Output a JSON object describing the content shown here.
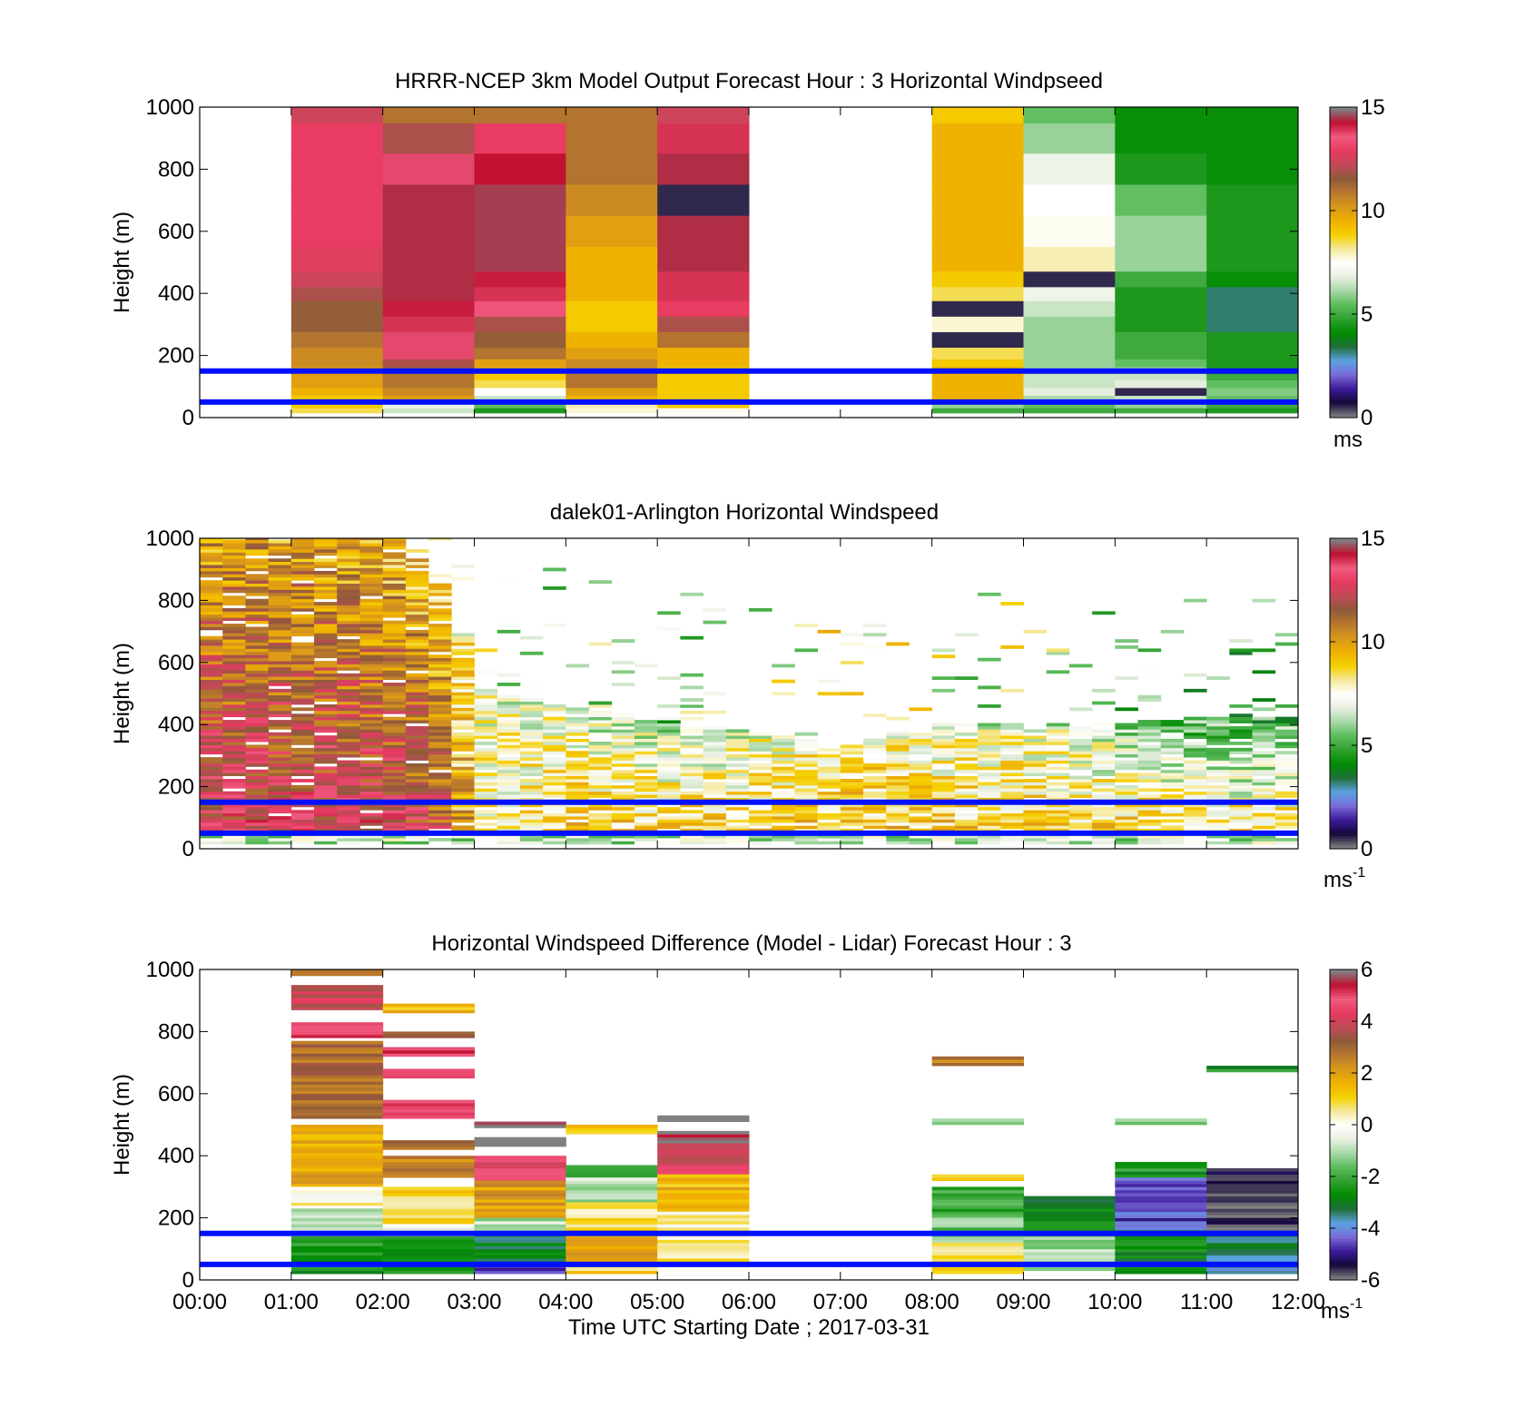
{
  "figure": {
    "xlabel": "Time UTC  Starting Date ; 2017-03-31"
  },
  "colors": {
    "model_lidar_stops": [
      "#808080",
      "#14083a",
      "#3d1a9a",
      "#7b6cd8",
      "#5aa2e0",
      "#1f6f3a",
      "#008c00",
      "#30a030",
      "#5cbc5c",
      "#a8d8a8",
      "#e8f0e0",
      "#ffffff",
      "#f4e89a",
      "#f5d000",
      "#f0b000",
      "#d9971b",
      "#b8782d",
      "#8f5a3a",
      "#c04a58",
      "#e83a60",
      "#f05a80",
      "#c01030",
      "#808080"
    ],
    "diff_stops": [
      "#808080",
      "#14083a",
      "#3d1a9a",
      "#7b6cd8",
      "#5aa2e0",
      "#1f6f3a",
      "#008c00",
      "#30a030",
      "#5cbc5c",
      "#a8d8a8",
      "#e8f0e0",
      "#ffffff",
      "#f4e89a",
      "#f5d000",
      "#f0b000",
      "#d9971b",
      "#b8782d",
      "#8f5a3a",
      "#c04a58",
      "#e83a60",
      "#f05a80",
      "#c01030",
      "#808080"
    ],
    "reference_line": "#0010ff"
  },
  "chart_data": [
    {
      "type": "heatmap",
      "id": "model",
      "title": "HRRR-NCEP 3km Model Output   Forecast Hour : 3 Horizontal Windpseed",
      "ylabel": "Height (m)",
      "ylim": [
        0,
        1000
      ],
      "yticks": [
        0,
        200,
        400,
        600,
        800,
        1000
      ],
      "xlim": [
        0,
        12
      ],
      "xticks_hours": [
        0,
        1,
        2,
        3,
        4,
        5,
        6,
        7,
        8,
        9,
        10,
        11,
        12
      ],
      "colorbar": {
        "range": [
          0,
          15
        ],
        "ticks": [
          0,
          5,
          10,
          15
        ],
        "unit": "ms"
      },
      "reference_lines_m": [
        150,
        50
      ],
      "heights_m": [
        995,
        900,
        800,
        700,
        600,
        500,
        440,
        400,
        350,
        300,
        250,
        200,
        175,
        150,
        130,
        110,
        80,
        60,
        40,
        20
      ],
      "columns": [
        {
          "t_start": 1,
          "t_end": 2,
          "speeds": [
            12.5,
            13,
            13,
            13,
            13,
            12.8,
            12.5,
            12,
            11.5,
            11.5,
            11,
            10.5,
            10.5,
            10,
            10,
            10,
            9.5,
            9,
            9,
            8.5
          ]
        },
        {
          "t_start": 2,
          "t_end": 3,
          "speeds": [
            11,
            12,
            13.8,
            14.5,
            14.5,
            14.5,
            14.5,
            14.5,
            14.2,
            14,
            13.8,
            13.8,
            12,
            11.5,
            11,
            11,
            10.5,
            10,
            7,
            6.5
          ]
        },
        {
          "t_start": 3,
          "t_end": 4,
          "speeds": [
            11,
            13,
            14.3,
            14.6,
            14.6,
            14.6,
            14.2,
            14,
            13.5,
            12,
            11.5,
            11,
            10,
            9.5,
            9,
            8.5,
            7.5,
            6.5,
            5.5,
            4.5
          ]
        },
        {
          "t_start": 4,
          "t_end": 5,
          "speeds": [
            11,
            11,
            11,
            10.5,
            10,
            9.5,
            9.5,
            9.5,
            9,
            9,
            9.5,
            10,
            10.5,
            10.5,
            11,
            11,
            10,
            9.5,
            8,
            7.8
          ]
        },
        {
          "t_start": 5,
          "t_end": 6,
          "speeds": [
            12.5,
            14,
            14.5,
            0.5,
            14.5,
            14.5,
            14,
            14,
            13,
            12,
            11,
            9.5,
            9.5,
            9,
            9,
            9,
            9,
            9,
            9,
            7.6
          ]
        },
        {
          "t_start": 8,
          "t_end": 9,
          "speeds": [
            9,
            9.5,
            9.5,
            9.5,
            9.5,
            9.5,
            9,
            8.5,
            0.5,
            7.8,
            0.5,
            8.5,
            9,
            9.5,
            9.5,
            9.5,
            9.5,
            9.5,
            6,
            5
          ]
        },
        {
          "t_start": 9,
          "t_end": 10,
          "speeds": [
            5.5,
            6,
            7,
            7.5,
            7.6,
            8,
            0.5,
            7,
            6.5,
            6,
            6,
            6,
            6,
            6,
            6.5,
            6.5,
            6.8,
            6.2,
            5.5,
            5
          ]
        },
        {
          "t_start": 10,
          "t_end": 11,
          "speeds": [
            4.2,
            4.2,
            4.5,
            5.5,
            6,
            6,
            5,
            4.5,
            4.5,
            4.5,
            5,
            5,
            5.5,
            6,
            6.5,
            6.8,
            0.5,
            6.5,
            6,
            5
          ]
        },
        {
          "t_start": 11,
          "t_end": 12,
          "speeds": [
            4.2,
            4.2,
            4.2,
            4.5,
            4.5,
            4.5,
            4.2,
            3.2,
            3.2,
            3.2,
            4.5,
            4.5,
            4.5,
            4.5,
            5,
            5.5,
            5.8,
            5.5,
            5,
            4.5
          ]
        }
      ]
    },
    {
      "type": "heatmap",
      "id": "lidar",
      "title": "dalek01-Arlington  Horizontal Windspeed",
      "ylabel": "Height (m)",
      "ylim": [
        0,
        1000
      ],
      "yticks": [
        0,
        200,
        400,
        600,
        800,
        1000
      ],
      "xlim": [
        0,
        12
      ],
      "xticks_hours": [
        0,
        1,
        2,
        3,
        4,
        5,
        6,
        7,
        8,
        9,
        10,
        11,
        12
      ],
      "colorbar": {
        "range": [
          0,
          15
        ],
        "ticks": [
          0,
          5,
          10,
          15
        ],
        "unit": "ms-1"
      },
      "reference_lines_m": [
        150,
        50
      ],
      "column_width_min": 15,
      "profile_keys_h": [
        0,
        1,
        2,
        2.5,
        3,
        4,
        5,
        6,
        7,
        8,
        9,
        10,
        11,
        12
      ],
      "profile_low_speed": [
        13,
        13,
        13,
        12,
        8,
        9,
        9,
        9,
        9,
        9,
        9,
        9,
        9,
        9
      ],
      "profile_high_speed": [
        10,
        10,
        9.5,
        9,
        7,
        6.5,
        6,
        7,
        8,
        7,
        7,
        6,
        5,
        5
      ],
      "profile_top_m": [
        1000,
        1000,
        950,
        850,
        700,
        550,
        480,
        420,
        420,
        480,
        450,
        430,
        420,
        420
      ],
      "solid_top_m": [
        1000,
        1000,
        1000,
        850,
        500,
        450,
        400,
        370,
        330,
        400,
        380,
        400,
        420,
        420
      ]
    },
    {
      "type": "heatmap",
      "id": "diff",
      "title": "Horizontal Windspeed Difference (Model - Lidar) Forecast Hour : 3",
      "ylabel": "Height (m)",
      "ylim": [
        0,
        1000
      ],
      "yticks": [
        0,
        200,
        400,
        600,
        800,
        1000
      ],
      "xlim": [
        0,
        12
      ],
      "xticks": [
        "00:00",
        "01:00",
        "02:00",
        "03:00",
        "04:00",
        "05:00",
        "06:00",
        "07:00",
        "08:00",
        "09:00",
        "10:00",
        "11:00",
        "12:00"
      ],
      "colorbar": {
        "range": [
          -6,
          6
        ],
        "ticks": [
          -6,
          -4,
          -2,
          0,
          2,
          4,
          6
        ],
        "unit": "ms-1"
      },
      "reference_lines_m": [
        150,
        50
      ],
      "columns": [
        {
          "t_start": 1,
          "t_end": 2,
          "segments": [
            [
              980,
              1000,
              3
            ],
            [
              870,
              950,
              4
            ],
            [
              780,
              830,
              5
            ],
            [
              520,
              770,
              3
            ],
            [
              300,
              500,
              1.8
            ],
            [
              230,
              300,
              0.2
            ],
            [
              140,
              230,
              -0.8
            ],
            [
              20,
              140,
              -2.5
            ]
          ]
        },
        {
          "t_start": 2,
          "t_end": 3,
          "segments": [
            [
              860,
              890,
              1.5
            ],
            [
              780,
              800,
              3.5
            ],
            [
              720,
              750,
              5
            ],
            [
              650,
              680,
              4.5
            ],
            [
              520,
              580,
              5
            ],
            [
              420,
              450,
              3
            ],
            [
              330,
              400,
              2.5
            ],
            [
              180,
              300,
              1
            ],
            [
              140,
              180,
              -0.5
            ],
            [
              20,
              140,
              -2.5
            ]
          ]
        },
        {
          "t_start": 3,
          "t_end": 4,
          "segments": [
            [
              490,
              510,
              6
            ],
            [
              430,
              460,
              6
            ],
            [
              320,
              400,
              4.5
            ],
            [
              200,
              320,
              2
            ],
            [
              150,
              200,
              -1
            ],
            [
              50,
              150,
              -3
            ],
            [
              20,
              50,
              -4.5
            ]
          ]
        },
        {
          "t_start": 4,
          "t_end": 5,
          "segments": [
            [
              470,
              500,
              1.5
            ],
            [
              330,
              370,
              -1.8
            ],
            [
              250,
              330,
              -1
            ],
            [
              160,
              250,
              0.8
            ],
            [
              50,
              160,
              1.8
            ],
            [
              20,
              50,
              1
            ]
          ]
        },
        {
          "t_start": 5,
          "t_end": 6,
          "segments": [
            [
              510,
              530,
              6
            ],
            [
              440,
              480,
              6
            ],
            [
              340,
              440,
              4
            ],
            [
              220,
              340,
              1.5
            ],
            [
              160,
              220,
              0.3
            ],
            [
              40,
              160,
              0.5
            ]
          ]
        },
        {
          "t_start": 8,
          "t_end": 9,
          "segments": [
            [
              690,
              720,
              2.5
            ],
            [
              500,
              520,
              -1.5
            ],
            [
              320,
              340,
              1
            ],
            [
              200,
              300,
              -2
            ],
            [
              120,
              200,
              -1.5
            ],
            [
              20,
              120,
              1
            ]
          ]
        },
        {
          "t_start": 9,
          "t_end": 10,
          "segments": [
            [
              150,
              270,
              -2.8
            ],
            [
              30,
              150,
              -1.2
            ]
          ]
        },
        {
          "t_start": 10,
          "t_end": 11,
          "segments": [
            [
              500,
              520,
              -1
            ],
            [
              330,
              380,
              -2.5
            ],
            [
              160,
              330,
              -4.5
            ],
            [
              20,
              160,
              -2.8
            ]
          ]
        },
        {
          "t_start": 11,
          "t_end": 12,
          "segments": [
            [
              670,
              690,
              -2.5
            ],
            [
              300,
              360,
              -5.8
            ],
            [
              200,
              300,
              -6
            ],
            [
              150,
              200,
              -5.5
            ],
            [
              20,
              150,
              -3.5
            ]
          ]
        }
      ]
    }
  ]
}
